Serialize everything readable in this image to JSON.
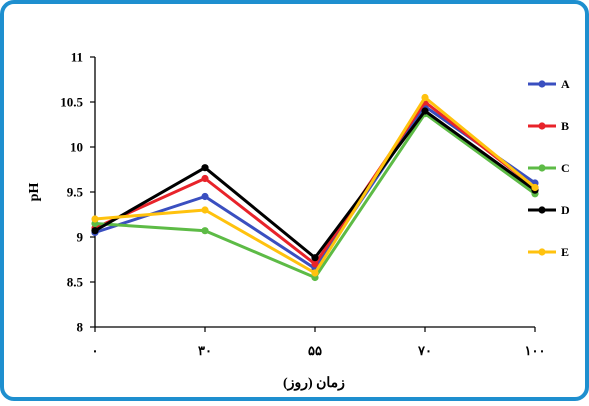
{
  "chart_data": {
    "type": "line",
    "title": "",
    "xlabel": "زمان (روز)",
    "ylabel": "pH",
    "categories": [
      "۰",
      "۳۰",
      "۵۵",
      "۷۰",
      "۱۰۰"
    ],
    "ylim": [
      8,
      11
    ],
    "yticks": [
      "8",
      "8.5",
      "9",
      "9.5",
      "10",
      "10.5",
      "11"
    ],
    "grid": false,
    "legend_position": "right",
    "series": [
      {
        "name": "A",
        "color": "#3A4FC0",
        "values": [
          9.05,
          9.45,
          8.65,
          10.45,
          9.6
        ]
      },
      {
        "name": "B",
        "color": "#E8232A",
        "values": [
          9.1,
          9.65,
          8.7,
          10.5,
          9.55
        ]
      },
      {
        "name": "C",
        "color": "#5DBB46",
        "values": [
          9.15,
          9.07,
          8.55,
          10.37,
          9.48
        ]
      },
      {
        "name": "D",
        "color": "#000000",
        "values": [
          9.07,
          9.77,
          8.77,
          10.4,
          9.52
        ]
      },
      {
        "name": "E",
        "color": "#FFC20E",
        "values": [
          9.2,
          9.3,
          8.6,
          10.55,
          9.55
        ]
      }
    ]
  },
  "frame": {
    "border_color": "#1E8FCF"
  }
}
